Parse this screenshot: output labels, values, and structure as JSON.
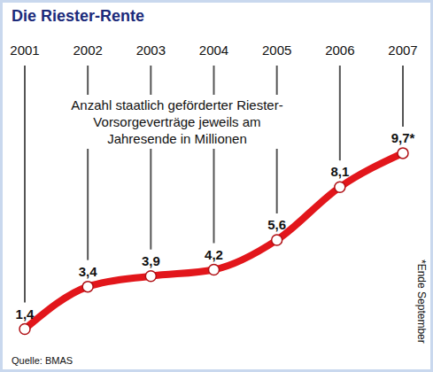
{
  "chart_data": {
    "type": "line",
    "title": "Die Riester-Rente",
    "subtitle": "Anzahl staatlich geförderter Riester-Vorsorgeverträge jeweils am Jahresende in Millionen",
    "categories": [
      "2001",
      "2002",
      "2003",
      "2004",
      "2005",
      "2006",
      "2007"
    ],
    "values": [
      1.4,
      3.4,
      3.9,
      4.2,
      5.6,
      8.1,
      9.7
    ],
    "value_labels": [
      "1,4",
      "3,4",
      "3,9",
      "4,2",
      "5,6",
      "8,1",
      "9,7*"
    ],
    "data_labels": true,
    "color": "#e2161b",
    "marker": "circle",
    "ylim": [
      0,
      14
    ],
    "tick_labels": "x",
    "note": "*Ende September",
    "source": "Quelle: BMAS"
  }
}
